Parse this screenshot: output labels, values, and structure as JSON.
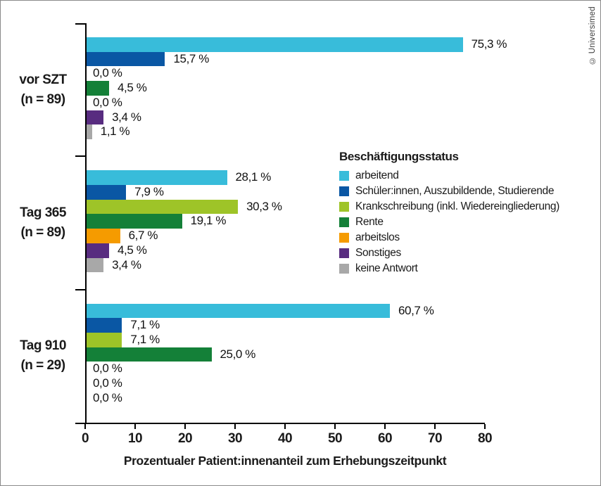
{
  "credit": "© Universimed",
  "chart_data": {
    "type": "bar",
    "orientation": "horizontal",
    "title": "",
    "xlabel": "Prozentualer Patient:innenanteil zum Erhebungszeitpunkt",
    "ylabel": "",
    "xlim": [
      0,
      80
    ],
    "xticks": [
      0,
      10,
      20,
      30,
      40,
      50,
      60,
      70,
      80
    ],
    "grid": false,
    "legend": {
      "title": "Beschäftigungsstatus",
      "position": "middle-right"
    },
    "categories": [
      {
        "name": "arbeitend",
        "color": "#38bcda"
      },
      {
        "name": "Schüler:innen, Auszubildende, Studierende",
        "color": "#0a57a4"
      },
      {
        "name": "Krankschreibung (inkl. Wiedereingliederung)",
        "color": "#9ec428"
      },
      {
        "name": "Rente",
        "color": "#148038"
      },
      {
        "name": "arbeitslos",
        "color": "#f59b00"
      },
      {
        "name": "Sonstiges",
        "color": "#582c80"
      },
      {
        "name": "keine Antwort",
        "color": "#a8a8a8"
      }
    ],
    "groups": [
      {
        "label": "vor SZT",
        "sublabel": "(n = 89)",
        "values": [
          75.3,
          15.7,
          0.0,
          4.5,
          0.0,
          3.4,
          1.1
        ],
        "value_labels": [
          "75,3 %",
          "15,7 %",
          "0,0 %",
          "4,5 %",
          "0,0 %",
          "3,4 %",
          "1,1 %"
        ]
      },
      {
        "label": "Tag 365",
        "sublabel": "(n = 89)",
        "values": [
          28.1,
          7.9,
          30.3,
          19.1,
          6.7,
          4.5,
          3.4
        ],
        "value_labels": [
          "28,1 %",
          "7,9 %",
          "30,3 %",
          "19,1 %",
          "6,7 %",
          "4,5 %",
          "3,4 %"
        ]
      },
      {
        "label": "Tag 910",
        "sublabel": "(n = 29)",
        "values": [
          60.7,
          7.1,
          7.1,
          25.0,
          0.0,
          0.0,
          0.0
        ],
        "value_labels": [
          "60,7 %",
          "7,1 %",
          "7,1 %",
          "25,0 %",
          "0,0 %",
          "0,0 %",
          "0,0 %"
        ]
      }
    ]
  }
}
